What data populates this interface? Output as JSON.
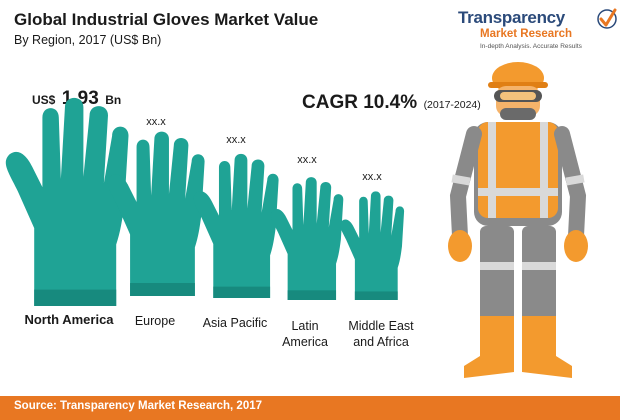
{
  "title": "Global Industrial Gloves Market Value",
  "subtitle": "By Region, 2017 (US$ Bn)",
  "logo": {
    "name": "Transparency",
    "sub": "Market Research",
    "tagline": "In-depth Analysis. Accurate Results"
  },
  "cagr": {
    "label": "CAGR 10.4%",
    "period": "(2017-2024)"
  },
  "lead_value": {
    "prefix": "US$",
    "value": "1.93",
    "suffix": "Bn"
  },
  "value_placeholders": [
    "xx.x",
    "xx.x",
    "xx.x",
    "xx.x"
  ],
  "categories_display": {
    "c0": [
      "North America"
    ],
    "c1": [
      "Europe"
    ],
    "c2": [
      "Asia Pacific"
    ],
    "c3": [
      "Latin",
      "America"
    ],
    "c4": [
      "Middle East",
      "and Africa"
    ]
  },
  "source": "Source: Transparency Market Research, 2017",
  "colors": {
    "glove": "#1fa395",
    "glove_dark": "#178a7e",
    "brand_blue": "#2b4a7a",
    "brand_orange": "#e87722",
    "vest": "#f39a2e",
    "suit": "#8a8a8a"
  },
  "chart_data": {
    "type": "bar",
    "categories": [
      "North America",
      "Europe",
      "Asia Pacific",
      "Latin America",
      "Middle East and Africa"
    ],
    "values": [
      1.93,
      null,
      null,
      null,
      null
    ],
    "value_labels": [
      "US$ 1.93 Bn",
      "xx.x",
      "xx.x",
      "xx.x",
      "xx.x"
    ],
    "title": "Global Industrial Gloves Market Value",
    "subtitle": "By Region, 2017 (US$ Bn)",
    "annotation": "CAGR 10.4% (2017-2024)"
  }
}
